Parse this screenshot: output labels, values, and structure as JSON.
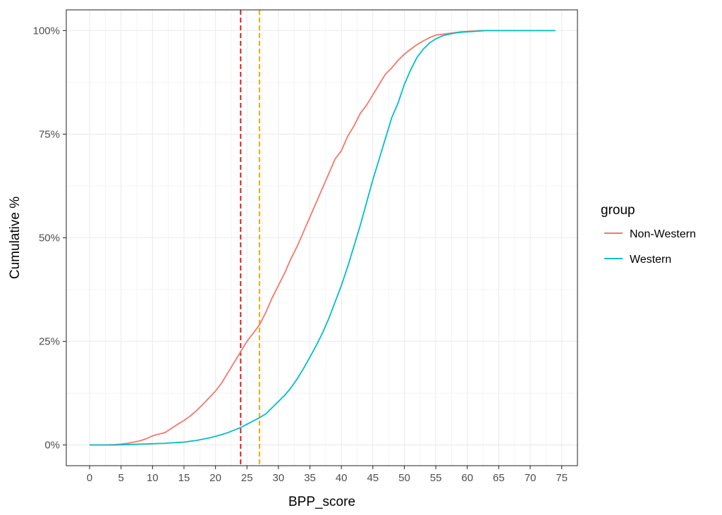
{
  "chart_data": {
    "type": "line",
    "xlabel": "BPP_score",
    "ylabel": "Cumulative %",
    "xlim": [
      -3.7,
      77.5
    ],
    "ylim": [
      -0.05,
      1.05
    ],
    "x_ticks": [
      0,
      5,
      10,
      15,
      20,
      25,
      30,
      35,
      40,
      45,
      50,
      55,
      60,
      65,
      70,
      75
    ],
    "x_tick_labels": [
      "0",
      "5",
      "10",
      "15",
      "20",
      "25",
      "30",
      "35",
      "40",
      "45",
      "50",
      "55",
      "60",
      "65",
      "70",
      "75"
    ],
    "y_ticks": [
      0,
      0.25,
      0.5,
      0.75,
      1
    ],
    "y_tick_labels": [
      "0%",
      "25%",
      "50%",
      "75%",
      "100%"
    ],
    "grid": true,
    "legend": {
      "title": "group",
      "placement": "right",
      "entries": [
        "Non-Western",
        "Western"
      ]
    },
    "vlines": [
      {
        "x": 24,
        "color": "#E41A1C",
        "style": "dashed"
      },
      {
        "x": 27,
        "color": "#FFA500",
        "style": "dashed"
      }
    ],
    "series": [
      {
        "name": "Non-Western",
        "color": "#F8766D",
        "x": [
          0,
          2,
          4,
          5,
          6,
          7,
          8,
          9,
          10,
          11,
          12,
          13,
          14,
          15,
          16,
          17,
          18,
          19,
          20,
          21,
          22,
          23,
          24,
          25,
          26,
          27,
          28,
          29,
          30,
          31,
          32,
          33,
          34,
          35,
          36,
          37,
          38,
          39,
          40,
          41,
          42,
          43,
          44,
          45,
          46,
          47,
          48,
          49,
          50,
          51,
          52,
          53,
          54,
          55,
          56,
          57,
          58,
          59,
          60,
          61,
          62,
          63,
          64,
          65,
          66,
          68,
          70,
          72,
          74
        ],
        "y": [
          0,
          0,
          0.001,
          0.002,
          0.004,
          0.007,
          0.01,
          0.015,
          0.022,
          0.026,
          0.03,
          0.04,
          0.05,
          0.059,
          0.07,
          0.083,
          0.098,
          0.114,
          0.13,
          0.15,
          0.175,
          0.2,
          0.225,
          0.25,
          0.27,
          0.29,
          0.32,
          0.355,
          0.385,
          0.415,
          0.45,
          0.48,
          0.515,
          0.55,
          0.585,
          0.62,
          0.655,
          0.69,
          0.71,
          0.745,
          0.77,
          0.8,
          0.82,
          0.845,
          0.87,
          0.895,
          0.91,
          0.928,
          0.943,
          0.955,
          0.966,
          0.975,
          0.983,
          0.989,
          0.991,
          0.993,
          0.995,
          0.997,
          0.998,
          0.999,
          1,
          1,
          1,
          1,
          1,
          1,
          1,
          1,
          1
        ]
      },
      {
        "name": "Western",
        "color": "#00BFC4",
        "x": [
          0,
          2,
          4,
          5,
          6,
          7,
          8,
          9,
          10,
          11,
          12,
          13,
          14,
          15,
          16,
          17,
          18,
          19,
          20,
          21,
          22,
          23,
          24,
          25,
          26,
          27,
          28,
          29,
          30,
          31,
          32,
          33,
          34,
          35,
          36,
          37,
          38,
          39,
          40,
          41,
          42,
          43,
          44,
          45,
          46,
          47,
          48,
          49,
          50,
          51,
          52,
          53,
          54,
          55,
          56,
          57,
          58,
          59,
          60,
          61,
          62,
          63,
          64,
          65,
          66,
          67,
          68,
          70,
          72,
          74
        ],
        "y": [
          0,
          0,
          0,
          0.0005,
          0.001,
          0.0015,
          0.002,
          0.0025,
          0.003,
          0.0035,
          0.004,
          0.005,
          0.006,
          0.007,
          0.009,
          0.011,
          0.014,
          0.017,
          0.021,
          0.025,
          0.03,
          0.036,
          0.042,
          0.05,
          0.058,
          0.066,
          0.075,
          0.09,
          0.105,
          0.12,
          0.138,
          0.16,
          0.185,
          0.212,
          0.24,
          0.27,
          0.305,
          0.345,
          0.385,
          0.43,
          0.48,
          0.53,
          0.585,
          0.64,
          0.69,
          0.74,
          0.79,
          0.825,
          0.87,
          0.905,
          0.935,
          0.955,
          0.97,
          0.98,
          0.987,
          0.991,
          0.994,
          0.996,
          0.997,
          0.998,
          0.999,
          1,
          1,
          1,
          1,
          1,
          1,
          1,
          1,
          1
        ]
      }
    ]
  }
}
